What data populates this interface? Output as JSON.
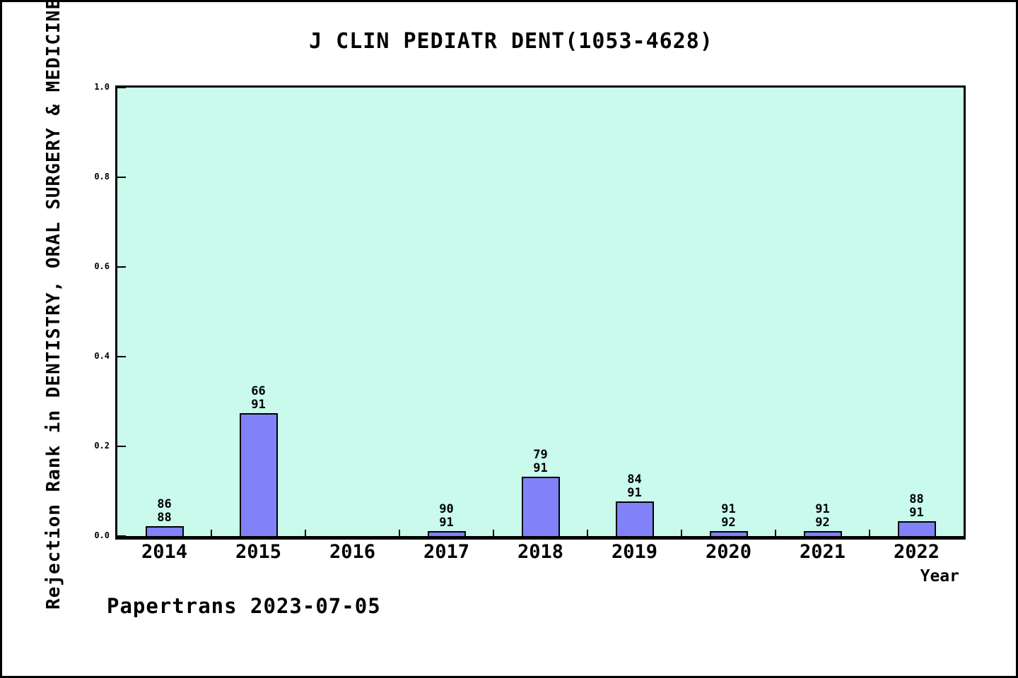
{
  "chart_data": {
    "type": "bar",
    "title": "J CLIN PEDIATR DENT(1053-4628)",
    "xlabel": "Year",
    "ylabel": "Rejection Rank in DENTISTRY, ORAL SURGERY & MEDICINE",
    "ylim": [
      0.0,
      1.0
    ],
    "ytick_labels": [
      "0.0",
      "0.2",
      "0.4",
      "0.6",
      "0.8",
      "1.0"
    ],
    "ytick_values": [
      0.0,
      0.2,
      0.4,
      0.6,
      0.8,
      1.0
    ],
    "grid": false,
    "legend": "none",
    "categories": [
      "2014",
      "2015",
      "2016",
      "2017",
      "2018",
      "2019",
      "2020",
      "2021",
      "2022"
    ],
    "bars": [
      {
        "year": "2014",
        "rank": "86",
        "total": "88",
        "value": 0.0227
      },
      {
        "year": "2015",
        "rank": "66",
        "total": "91",
        "value": 0.2747
      },
      {
        "year": "2016",
        "rank": null,
        "total": null,
        "value": null
      },
      {
        "year": "2017",
        "rank": "90",
        "total": "91",
        "value": 0.011
      },
      {
        "year": "2018",
        "rank": "79",
        "total": "91",
        "value": 0.1319
      },
      {
        "year": "2019",
        "rank": "84",
        "total": "91",
        "value": 0.0769
      },
      {
        "year": "2020",
        "rank": "91",
        "total": "92",
        "value": 0.0109
      },
      {
        "year": "2021",
        "rank": "91",
        "total": "92",
        "value": 0.0109
      },
      {
        "year": "2022",
        "rank": "88",
        "total": "91",
        "value": 0.033
      }
    ],
    "colors": {
      "bar_fill": "#8181f8",
      "bar_border": "#000000",
      "plot_background": "#c9faec",
      "axis": "#000000",
      "page_background": "#ffffff"
    },
    "footer": "Papertrans 2023-07-05"
  }
}
